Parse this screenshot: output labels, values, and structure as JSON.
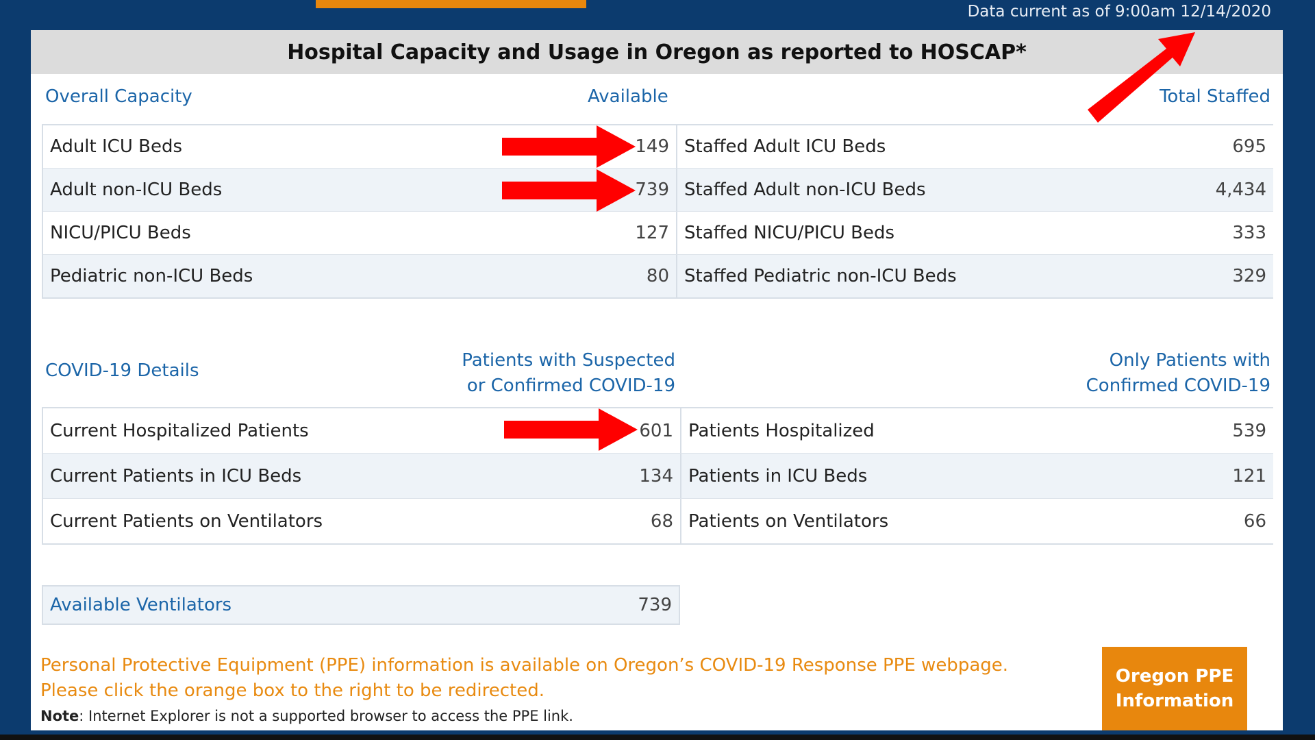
{
  "data_current": "Data current as of 9:00am 12/14/2020",
  "title": "Hospital Capacity and Usage in Oregon as reported to HOSCAP*",
  "capacity": {
    "section_label": "Overall Capacity",
    "available_header": "Available",
    "staffed_header": "Total Staffed",
    "rows": [
      {
        "label": "Adult ICU Beds",
        "available": "149",
        "staffed_label": "Staffed Adult ICU Beds",
        "staffed": "695"
      },
      {
        "label": "Adult non-ICU Beds",
        "available": "739",
        "staffed_label": "Staffed Adult non-ICU Beds",
        "staffed": "4,434"
      },
      {
        "label": "NICU/PICU Beds",
        "available": "127",
        "staffed_label": "Staffed NICU/PICU Beds",
        "staffed": "333"
      },
      {
        "label": "Pediatric non-ICU Beds",
        "available": "80",
        "staffed_label": "Staffed Pediatric non-ICU Beds",
        "staffed": "329"
      }
    ]
  },
  "covid": {
    "section_label": "COVID-19 Details",
    "suspected_header_line1": "Patients with Suspected",
    "suspected_header_line2": "or Confirmed COVID-19",
    "confirmed_header_line1": "Only Patients with",
    "confirmed_header_line2": "Confirmed COVID-19",
    "rows": [
      {
        "label": "Current Hospitalized Patients",
        "suspected": "601",
        "confirmed_label": "Patients Hospitalized",
        "confirmed": "539"
      },
      {
        "label": "Current Patients in ICU Beds",
        "suspected": "134",
        "confirmed_label": "Patients in ICU Beds",
        "confirmed": "121"
      },
      {
        "label": "Current Patients on Ventilators",
        "suspected": "68",
        "confirmed_label": "Patients on Ventilators",
        "confirmed": "66"
      }
    ]
  },
  "ventilators": {
    "label": "Available Ventilators",
    "value": "739"
  },
  "ppe": {
    "line1": "Personal Protective Equipment (PPE) information is available on Oregon’s COVID-19 Response PPE webpage.",
    "line2": "Please click the orange box to the right to be redirected.",
    "note_label": "Note",
    "note_text": ": Internet Explorer is not a supported browser to access the PPE link.",
    "button_line1": "Oregon PPE",
    "button_line2": "Information"
  },
  "colors": {
    "arrow": "#ff0000",
    "accent_orange": "#e8870d",
    "header_blue": "#1b65a8",
    "frame_blue": "#0c3b6e"
  }
}
